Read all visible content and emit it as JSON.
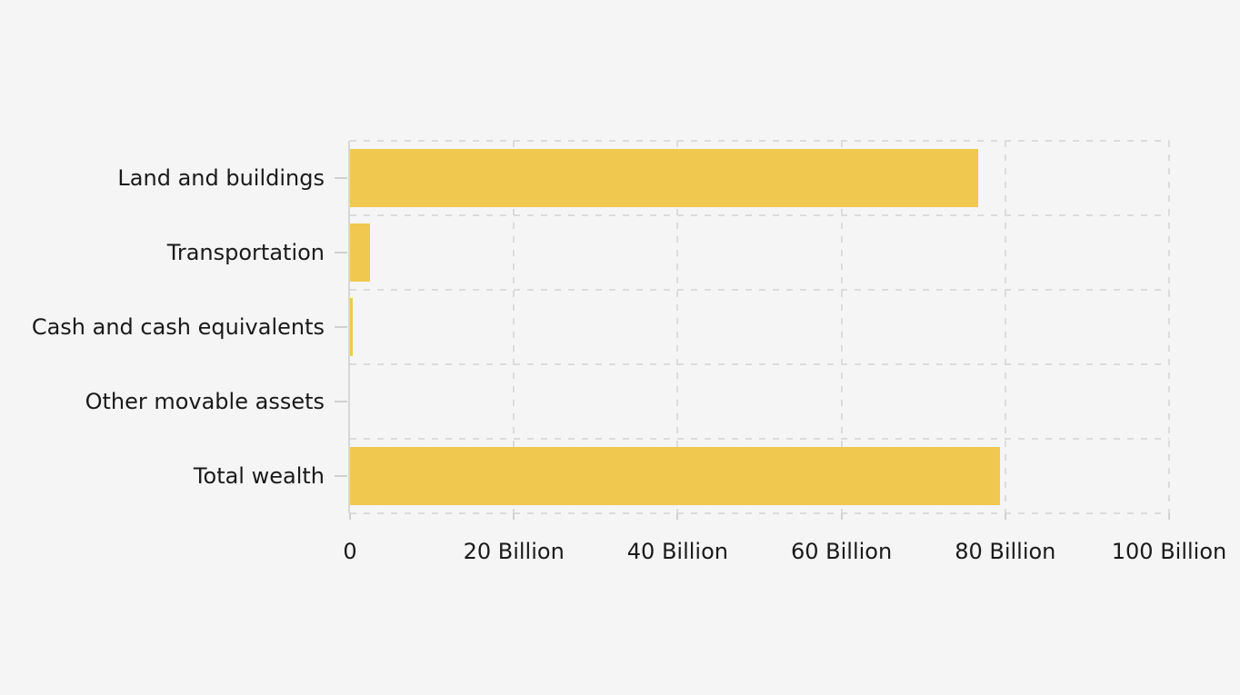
{
  "chart_data": {
    "type": "bar",
    "orientation": "horizontal",
    "title": "",
    "categories": [
      "Land and buildings",
      "Transportation",
      "Cash and cash equivalents",
      "Other movable assets",
      "Total wealth"
    ],
    "values": [
      76.7,
      2.4,
      0.3,
      0,
      79.4
    ],
    "unit": "Billion",
    "xlim": [
      0,
      100
    ],
    "x_ticks": [
      {
        "value": 0,
        "label": "0"
      },
      {
        "value": 20,
        "label": "20 Billion"
      },
      {
        "value": 40,
        "label": "40 Billion"
      },
      {
        "value": 60,
        "label": "60 Billion"
      },
      {
        "value": 80,
        "label": "80 Billion"
      },
      {
        "value": 100,
        "label": "100 Billion"
      }
    ],
    "grid": "dashed",
    "legend": "none",
    "colors": {
      "bar": "#F0C850",
      "background": "#F5F5F5",
      "grid": "#DBDBDB",
      "axis": "#D7D7D7",
      "tick": "#D0D0D0",
      "text": "#1A1A1A"
    }
  }
}
